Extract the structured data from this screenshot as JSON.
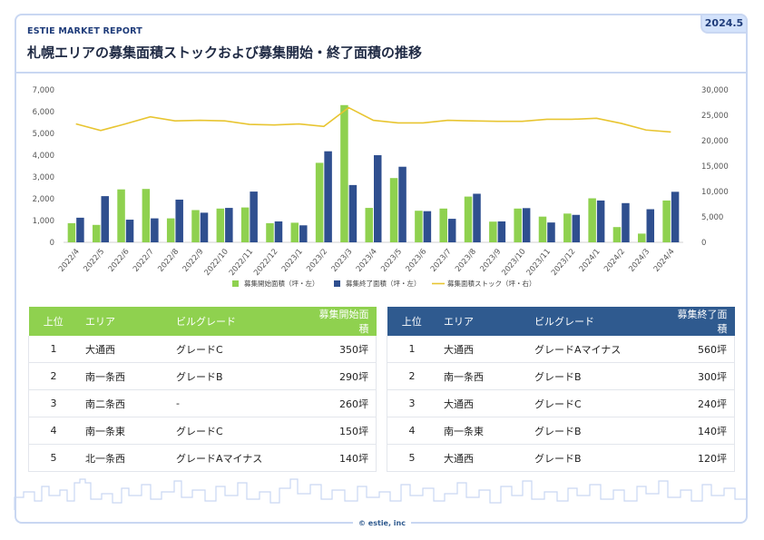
{
  "header": {
    "report_label": "ESTIE MARKET REPORT",
    "title": "札幌エリアの募集面積ストックおよび募集開始・終了面積の推移",
    "date_badge": "2024.5"
  },
  "colors": {
    "start_bar": "#8fd14f",
    "end_bar": "#2f4f8f",
    "stock_line": "#e8c531",
    "frame": "#c9d7f2"
  },
  "chart_data": {
    "type": "bar",
    "categories": [
      "2022/4",
      "2022/5",
      "2022/6",
      "2022/7",
      "2022/8",
      "2022/9",
      "2022/10",
      "2022/11",
      "2022/12",
      "2023/1",
      "2023/2",
      "2023/3",
      "2023/4",
      "2023/5",
      "2023/6",
      "2023/7",
      "2023/8",
      "2023/9",
      "2023/10",
      "2023/11",
      "2023/12",
      "2024/1",
      "2024/2",
      "2024/3",
      "2024/4"
    ],
    "series": [
      {
        "name": "募集開始面積（坪・左）",
        "type": "bar",
        "axis": "left",
        "values": [
          880,
          800,
          2430,
          2450,
          1100,
          1480,
          1550,
          1600,
          880,
          900,
          3650,
          6300,
          1580,
          2950,
          1450,
          1550,
          2100,
          950,
          1550,
          1180,
          1320,
          2020,
          700,
          400,
          1920
        ]
      },
      {
        "name": "募集終了面積（坪・左）",
        "type": "bar",
        "axis": "left",
        "values": [
          1130,
          2120,
          1040,
          1100,
          1960,
          1360,
          1580,
          2330,
          960,
          780,
          4180,
          2630,
          4000,
          3470,
          1430,
          1080,
          2230,
          960,
          1570,
          910,
          1260,
          1920,
          1800,
          1520,
          2320
        ]
      },
      {
        "name": "募集面積ストック（坪・右）",
        "type": "line",
        "axis": "right",
        "values": [
          23300,
          22000,
          23300,
          24700,
          23900,
          24000,
          23900,
          23200,
          23100,
          23300,
          22800,
          26500,
          24000,
          23500,
          23500,
          24000,
          23900,
          23800,
          23800,
          24200,
          24200,
          24400,
          23400,
          22100,
          21700
        ]
      }
    ],
    "y_left": {
      "ylim": [
        0,
        7000
      ],
      "ticks": [
        "0",
        "1,000",
        "2,000",
        "3,000",
        "4,000",
        "5,000",
        "6,000",
        "7,000"
      ]
    },
    "y_right": {
      "ylim": [
        0,
        30000
      ],
      "ticks": [
        "0",
        "5,000",
        "10,000",
        "15,000",
        "20,000",
        "25,000",
        "30,000"
      ]
    },
    "grid": false,
    "legend_position": "bottom"
  },
  "table_start": {
    "headers": [
      "上位",
      "エリア",
      "ビルグレード",
      "募集開始面積"
    ],
    "rows": [
      [
        "1",
        "大通西",
        "グレードC",
        "350坪"
      ],
      [
        "2",
        "南一条西",
        "グレードB",
        "290坪"
      ],
      [
        "3",
        "南二条西",
        "-",
        "260坪"
      ],
      [
        "4",
        "南一条東",
        "グレードC",
        "150坪"
      ],
      [
        "5",
        "北一条西",
        "グレードAマイナス",
        "140坪"
      ]
    ]
  },
  "table_end": {
    "headers": [
      "上位",
      "エリア",
      "ビルグレード",
      "募集終了面積"
    ],
    "rows": [
      [
        "1",
        "大通西",
        "グレードAマイナス",
        "560坪"
      ],
      [
        "2",
        "南一条西",
        "グレードB",
        "300坪"
      ],
      [
        "3",
        "大通西",
        "グレードC",
        "240坪"
      ],
      [
        "4",
        "南一条東",
        "グレードB",
        "140坪"
      ],
      [
        "5",
        "大通西",
        "グレードB",
        "120坪"
      ]
    ]
  },
  "footer": {
    "copyright": "© estie, inc",
    "decoration": "city-skyline-outline"
  }
}
